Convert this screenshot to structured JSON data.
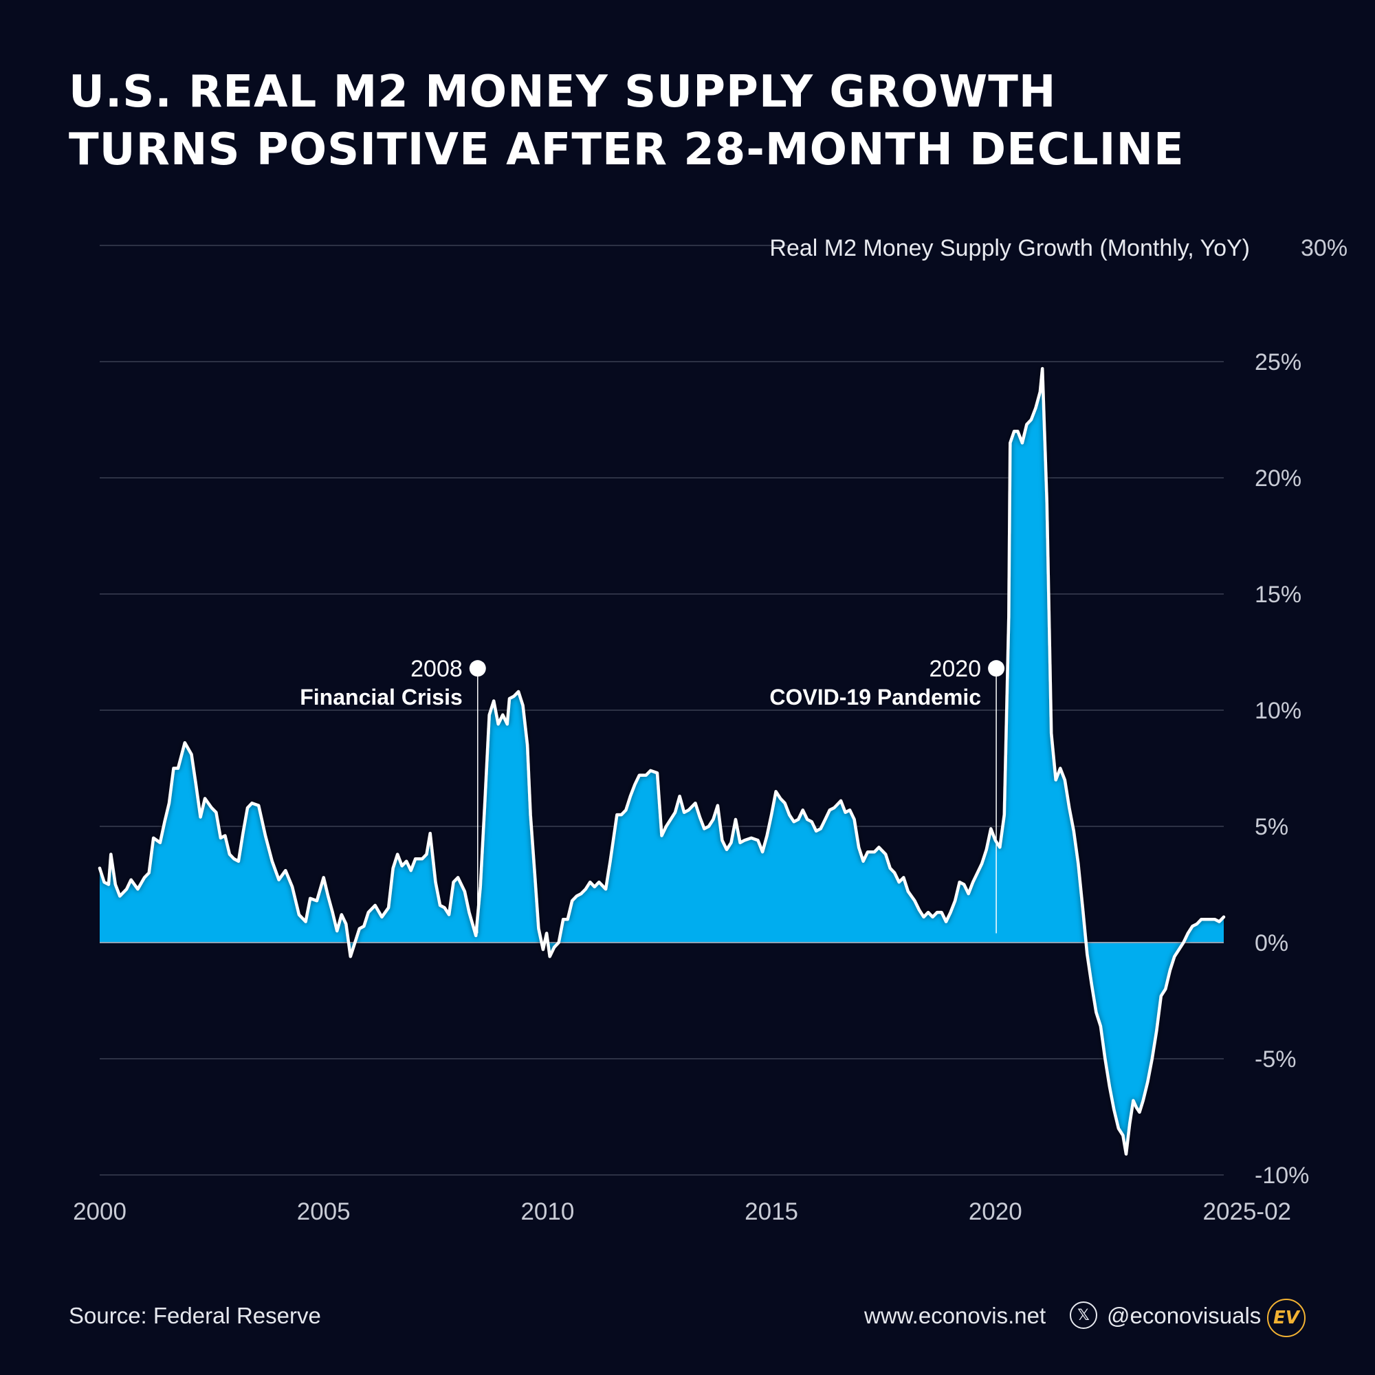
{
  "header": {
    "title_line1": "U.S. REAL M2 MONEY SUPPLY GROWTH",
    "title_line2": "TURNS POSITIVE AFTER 28-MONTH DECLINE"
  },
  "chart_data": {
    "type": "area",
    "series_name": "Real M2 Money Supply Growth (Monthly, YoY)",
    "ylim": [
      -10,
      30
    ],
    "y_ticks": [
      {
        "value": 30,
        "label": "30%"
      },
      {
        "value": 25,
        "label": "25%"
      },
      {
        "value": 20,
        "label": "20%"
      },
      {
        "value": 15,
        "label": "15%"
      },
      {
        "value": 10,
        "label": "10%"
      },
      {
        "value": 5,
        "label": "5%"
      },
      {
        "value": 0,
        "label": "0%"
      },
      {
        "value": -5,
        "label": "-5%"
      },
      {
        "value": -10,
        "label": "-10%"
      }
    ],
    "xlim": [
      2000.0,
      2025.1
    ],
    "x_ticks": [
      {
        "value": 2000,
        "label": "2000"
      },
      {
        "value": 2005,
        "label": "2005"
      },
      {
        "value": 2010,
        "label": "2010"
      },
      {
        "value": 2015,
        "label": "2015"
      },
      {
        "value": 2020,
        "label": "2020"
      },
      {
        "value": 2025.1,
        "label": "2025-02"
      }
    ],
    "points": [
      [
        2000.0,
        3.2
      ],
      [
        2000.1,
        2.6
      ],
      [
        2000.2,
        2.5
      ],
      [
        2000.25,
        3.8
      ],
      [
        2000.35,
        2.5
      ],
      [
        2000.45,
        2.0
      ],
      [
        2000.6,
        2.3
      ],
      [
        2000.7,
        2.7
      ],
      [
        2000.85,
        2.3
      ],
      [
        2001.0,
        2.8
      ],
      [
        2001.1,
        3.0
      ],
      [
        2001.2,
        4.5
      ],
      [
        2001.35,
        4.3
      ],
      [
        2001.45,
        5.2
      ],
      [
        2001.55,
        6.0
      ],
      [
        2001.65,
        7.5
      ],
      [
        2001.75,
        7.5
      ],
      [
        2001.9,
        8.6
      ],
      [
        2002.05,
        8.1
      ],
      [
        2002.15,
        6.8
      ],
      [
        2002.25,
        5.4
      ],
      [
        2002.35,
        6.2
      ],
      [
        2002.5,
        5.8
      ],
      [
        2002.6,
        5.6
      ],
      [
        2002.7,
        4.5
      ],
      [
        2002.8,
        4.6
      ],
      [
        2002.9,
        3.8
      ],
      [
        2003.0,
        3.6
      ],
      [
        2003.1,
        3.5
      ],
      [
        2003.2,
        4.7
      ],
      [
        2003.3,
        5.8
      ],
      [
        2003.4,
        6.0
      ],
      [
        2003.55,
        5.9
      ],
      [
        2003.7,
        4.6
      ],
      [
        2003.85,
        3.5
      ],
      [
        2004.0,
        2.7
      ],
      [
        2004.15,
        3.1
      ],
      [
        2004.3,
        2.4
      ],
      [
        2004.45,
        1.2
      ],
      [
        2004.6,
        0.9
      ],
      [
        2004.7,
        1.9
      ],
      [
        2004.85,
        1.8
      ],
      [
        2005.0,
        2.8
      ],
      [
        2005.1,
        2.0
      ],
      [
        2005.2,
        1.3
      ],
      [
        2005.3,
        0.5
      ],
      [
        2005.4,
        1.2
      ],
      [
        2005.5,
        0.8
      ],
      [
        2005.6,
        -0.6
      ],
      [
        2005.7,
        0.0
      ],
      [
        2005.8,
        0.6
      ],
      [
        2005.9,
        0.7
      ],
      [
        2006.0,
        1.3
      ],
      [
        2006.15,
        1.6
      ],
      [
        2006.3,
        1.1
      ],
      [
        2006.45,
        1.5
      ],
      [
        2006.55,
        3.2
      ],
      [
        2006.65,
        3.8
      ],
      [
        2006.75,
        3.3
      ],
      [
        2006.85,
        3.5
      ],
      [
        2006.95,
        3.1
      ],
      [
        2007.05,
        3.6
      ],
      [
        2007.2,
        3.6
      ],
      [
        2007.3,
        3.8
      ],
      [
        2007.38,
        4.7
      ],
      [
        2007.5,
        2.6
      ],
      [
        2007.6,
        1.6
      ],
      [
        2007.7,
        1.5
      ],
      [
        2007.8,
        1.2
      ],
      [
        2007.9,
        2.6
      ],
      [
        2008.0,
        2.8
      ],
      [
        2008.15,
        2.2
      ],
      [
        2008.25,
        1.3
      ],
      [
        2008.4,
        0.3
      ],
      [
        2008.5,
        2.4
      ],
      [
        2008.6,
        6.0
      ],
      [
        2008.7,
        9.8
      ],
      [
        2008.8,
        10.4
      ],
      [
        2008.9,
        9.4
      ],
      [
        2009.0,
        9.8
      ],
      [
        2009.1,
        9.4
      ],
      [
        2009.15,
        10.5
      ],
      [
        2009.25,
        10.6
      ],
      [
        2009.35,
        10.8
      ],
      [
        2009.45,
        10.2
      ],
      [
        2009.55,
        8.5
      ],
      [
        2009.62,
        5.5
      ],
      [
        2009.72,
        2.8
      ],
      [
        2009.8,
        0.6
      ],
      [
        2009.9,
        -0.3
      ],
      [
        2009.98,
        0.4
      ],
      [
        2010.05,
        -0.6
      ],
      [
        2010.15,
        -0.2
      ],
      [
        2010.25,
        0.0
      ],
      [
        2010.35,
        1.0
      ],
      [
        2010.45,
        1.0
      ],
      [
        2010.55,
        1.8
      ],
      [
        2010.65,
        2.0
      ],
      [
        2010.75,
        2.1
      ],
      [
        2010.85,
        2.3
      ],
      [
        2010.95,
        2.6
      ],
      [
        2011.05,
        2.4
      ],
      [
        2011.15,
        2.6
      ],
      [
        2011.3,
        2.3
      ],
      [
        2011.4,
        3.5
      ],
      [
        2011.55,
        5.5
      ],
      [
        2011.65,
        5.5
      ],
      [
        2011.75,
        5.7
      ],
      [
        2011.85,
        6.3
      ],
      [
        2011.95,
        6.8
      ],
      [
        2012.05,
        7.2
      ],
      [
        2012.2,
        7.2
      ],
      [
        2012.3,
        7.4
      ],
      [
        2012.45,
        7.3
      ],
      [
        2012.55,
        4.6
      ],
      [
        2012.65,
        5.0
      ],
      [
        2012.75,
        5.3
      ],
      [
        2012.85,
        5.6
      ],
      [
        2012.95,
        6.3
      ],
      [
        2013.05,
        5.6
      ],
      [
        2013.15,
        5.7
      ],
      [
        2013.3,
        6.0
      ],
      [
        2013.4,
        5.4
      ],
      [
        2013.5,
        4.9
      ],
      [
        2013.6,
        5.0
      ],
      [
        2013.7,
        5.3
      ],
      [
        2013.8,
        5.9
      ],
      [
        2013.9,
        4.4
      ],
      [
        2014.0,
        4.0
      ],
      [
        2014.1,
        4.3
      ],
      [
        2014.2,
        5.3
      ],
      [
        2014.3,
        4.3
      ],
      [
        2014.4,
        4.4
      ],
      [
        2014.55,
        4.5
      ],
      [
        2014.7,
        4.4
      ],
      [
        2014.8,
        3.9
      ],
      [
        2014.9,
        4.6
      ],
      [
        2015.0,
        5.5
      ],
      [
        2015.1,
        6.5
      ],
      [
        2015.2,
        6.2
      ],
      [
        2015.3,
        6.0
      ],
      [
        2015.4,
        5.5
      ],
      [
        2015.5,
        5.2
      ],
      [
        2015.6,
        5.3
      ],
      [
        2015.7,
        5.7
      ],
      [
        2015.8,
        5.3
      ],
      [
        2015.9,
        5.2
      ],
      [
        2016.0,
        4.8
      ],
      [
        2016.1,
        4.9
      ],
      [
        2016.2,
        5.3
      ],
      [
        2016.3,
        5.7
      ],
      [
        2016.4,
        5.8
      ],
      [
        2016.55,
        6.1
      ],
      [
        2016.65,
        5.6
      ],
      [
        2016.75,
        5.7
      ],
      [
        2016.85,
        5.3
      ],
      [
        2016.95,
        4.1
      ],
      [
        2017.05,
        3.5
      ],
      [
        2017.15,
        3.9
      ],
      [
        2017.3,
        3.9
      ],
      [
        2017.4,
        4.1
      ],
      [
        2017.55,
        3.8
      ],
      [
        2017.65,
        3.2
      ],
      [
        2017.75,
        3.0
      ],
      [
        2017.85,
        2.6
      ],
      [
        2017.95,
        2.8
      ],
      [
        2018.05,
        2.2
      ],
      [
        2018.2,
        1.8
      ],
      [
        2018.3,
        1.4
      ],
      [
        2018.4,
        1.1
      ],
      [
        2018.5,
        1.3
      ],
      [
        2018.6,
        1.1
      ],
      [
        2018.7,
        1.3
      ],
      [
        2018.8,
        1.3
      ],
      [
        2018.9,
        0.9
      ],
      [
        2019.0,
        1.3
      ],
      [
        2019.1,
        1.8
      ],
      [
        2019.2,
        2.6
      ],
      [
        2019.3,
        2.5
      ],
      [
        2019.4,
        2.1
      ],
      [
        2019.5,
        2.6
      ],
      [
        2019.6,
        3.0
      ],
      [
        2019.7,
        3.4
      ],
      [
        2019.8,
        4.0
      ],
      [
        2019.9,
        4.9
      ],
      [
        2020.0,
        4.4
      ],
      [
        2020.1,
        4.1
      ],
      [
        2020.2,
        5.5
      ],
      [
        2020.3,
        14.0
      ],
      [
        2020.33,
        21.5
      ],
      [
        2020.42,
        22.0
      ],
      [
        2020.5,
        22.0
      ],
      [
        2020.6,
        21.5
      ],
      [
        2020.7,
        22.3
      ],
      [
        2020.8,
        22.5
      ],
      [
        2020.9,
        23.0
      ],
      [
        2021.0,
        23.7
      ],
      [
        2021.05,
        24.7
      ],
      [
        2021.15,
        19.0
      ],
      [
        2021.25,
        9.0
      ],
      [
        2021.35,
        7.0
      ],
      [
        2021.45,
        7.5
      ],
      [
        2021.55,
        7.0
      ],
      [
        2021.65,
        5.8
      ],
      [
        2021.75,
        4.8
      ],
      [
        2021.85,
        3.4
      ],
      [
        2021.95,
        1.5
      ],
      [
        2022.05,
        -0.5
      ],
      [
        2022.15,
        -1.8
      ],
      [
        2022.25,
        -3.0
      ],
      [
        2022.35,
        -3.6
      ],
      [
        2022.45,
        -5.0
      ],
      [
        2022.55,
        -6.2
      ],
      [
        2022.65,
        -7.2
      ],
      [
        2022.75,
        -8.0
      ],
      [
        2022.85,
        -8.3
      ],
      [
        2022.92,
        -9.1
      ],
      [
        2023.0,
        -7.8
      ],
      [
        2023.08,
        -6.8
      ],
      [
        2023.15,
        -7.1
      ],
      [
        2023.22,
        -7.3
      ],
      [
        2023.3,
        -6.8
      ],
      [
        2023.4,
        -6.0
      ],
      [
        2023.5,
        -5.0
      ],
      [
        2023.6,
        -3.8
      ],
      [
        2023.7,
        -2.3
      ],
      [
        2023.8,
        -2.0
      ],
      [
        2023.9,
        -1.2
      ],
      [
        2024.0,
        -0.6
      ],
      [
        2024.1,
        -0.3
      ],
      [
        2024.2,
        0.0
      ],
      [
        2024.3,
        0.4
      ],
      [
        2024.4,
        0.7
      ],
      [
        2024.5,
        0.8
      ],
      [
        2024.6,
        1.0
      ],
      [
        2024.7,
        1.0
      ],
      [
        2024.8,
        1.0
      ],
      [
        2024.9,
        1.0
      ],
      [
        2025.0,
        0.9
      ],
      [
        2025.1,
        1.1
      ]
    ],
    "annotations": [
      {
        "year": "2008",
        "label": "Financial Crisis",
        "x": 2008.44,
        "y": 11.8
      },
      {
        "year": "2020",
        "label": "COVID-19 Pandemic",
        "x": 2020.02,
        "y": 11.8
      }
    ],
    "colors": {
      "background": "#060a1e",
      "area_fill": "#00adef",
      "line": "#ffffff",
      "grid": "#3a3f52",
      "axis_text": "#c9ccd6"
    }
  },
  "footer": {
    "source": "Source: Federal Reserve",
    "website": "www.econovis.net",
    "x_icon": "x-logo-icon",
    "x_icon_text": "𝕏",
    "handle": "@econovisuals",
    "logo_text": "EV"
  }
}
